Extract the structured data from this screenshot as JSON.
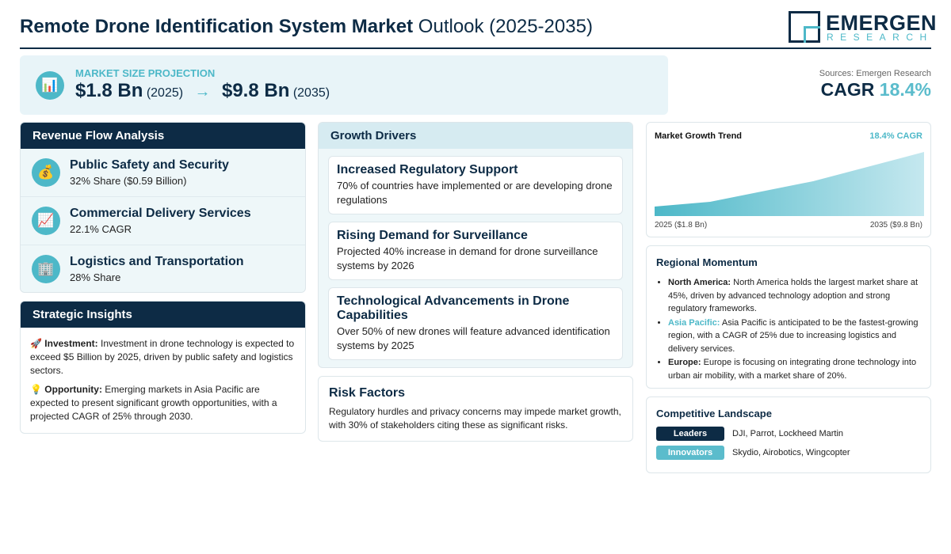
{
  "header": {
    "title_bold": "Remote Drone Identification System Market",
    "title_rest": "Outlook (2025-2035)",
    "logo_main": "EMERGEN",
    "logo_sub": "RESEARCH"
  },
  "projection": {
    "icon": "📊",
    "label": "MARKET SIZE PROJECTION",
    "start_value": "$1.8 Bn",
    "start_year": "(2025)",
    "arrow": "→",
    "end_value": "$9.8 Bn",
    "end_year": "(2035)"
  },
  "sources": "Sources: Emergen Research",
  "cagr": {
    "label": "CAGR",
    "value": "18.4%"
  },
  "revenue_flow": {
    "title": "Revenue Flow Analysis",
    "items": [
      {
        "icon": "💰",
        "name": "Public Safety and Security",
        "detail": "32% Share ($0.59 Billion)"
      },
      {
        "icon": "📈",
        "name": "Commercial Delivery Services",
        "detail": "22.1% CAGR"
      },
      {
        "icon": "🏢",
        "name": "Logistics and Transportation",
        "detail": "28% Share"
      }
    ]
  },
  "strategic_insights": {
    "title": "Strategic Insights",
    "items": [
      {
        "icon": "🚀",
        "label": "Investment:",
        "text": "Investment in drone technology is expected to exceed $5 Billion by 2025, driven by public safety and logistics sectors."
      },
      {
        "icon": "💡",
        "label": "Opportunity:",
        "text": "Emerging markets in Asia Pacific are expected to present significant growth opportunities, with a projected CAGR of 25% through 2030."
      }
    ]
  },
  "growth_drivers": {
    "title": "Growth Drivers",
    "items": [
      {
        "title": "Increased Regulatory Support",
        "text": "70% of countries have implemented or are developing drone regulations"
      },
      {
        "title": "Rising Demand for Surveillance",
        "text": "Projected 40% increase in demand for drone surveillance systems by 2026"
      },
      {
        "title": "Technological Advancements in Drone Capabilities",
        "text": "Over 50% of new drones will feature advanced identification systems by 2025"
      }
    ]
  },
  "risk_factors": {
    "title": "Risk Factors",
    "text": "Regulatory hurdles and privacy concerns may impede market growth, with 30% of stakeholders citing these as significant risks."
  },
  "trend": {
    "title": "Market Growth Trend",
    "cagr": "18.4% CAGR",
    "start_label": "2025 ($1.8 Bn)",
    "end_label": "2035 ($9.8 Bn)"
  },
  "regional": {
    "title": "Regional Momentum",
    "items": [
      {
        "region": "North America:",
        "text": "North America holds the largest market share at 45%, driven by advanced technology adoption and strong regulatory frameworks."
      },
      {
        "region": "Asia Pacific:",
        "text": "Asia Pacific is anticipated to be the fastest-growing region, with a CAGR of 25% due to increasing logistics and delivery services."
      },
      {
        "region": "Europe:",
        "text": "Europe is focusing on integrating drone technology into urban air mobility, with a market share of 20%."
      }
    ]
  },
  "competitive": {
    "title": "Competitive Landscape",
    "rows": [
      {
        "label": "Leaders",
        "companies": "DJI, Parrot, Lockheed Martin"
      },
      {
        "label": "Innovators",
        "companies": "Skydio, Airobotics, Wingcopter"
      }
    ]
  }
}
